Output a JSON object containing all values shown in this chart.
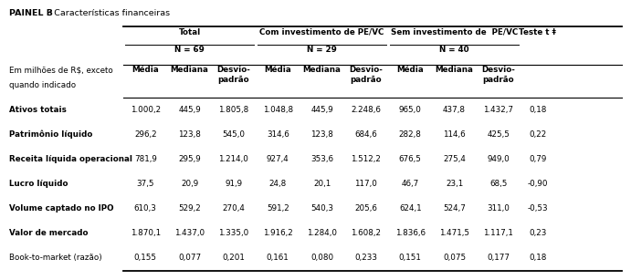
{
  "panel_label_bold": "PAINEL B",
  "panel_label_rest": ": Características financeiras",
  "groups": [
    {
      "label": "Total",
      "n": "N = 69"
    },
    {
      "label": "Com investimento de PE/VC",
      "n": "N = 29"
    },
    {
      "label": "Sem investimento de  PE/VC",
      "n": "N = 40"
    }
  ],
  "col_header": [
    "Média",
    "Mediana",
    "Desvio-\npadrão"
  ],
  "last_col_header": "Teste t ‡",
  "row_label_header_line1": "Em milhões de R$, exceto",
  "row_label_header_line2": "quando indicado",
  "rows": [
    {
      "label": "Ativos totais",
      "bold": true,
      "total": [
        "1.000,2",
        "445,9",
        "1.805,8"
      ],
      "com": [
        "1.048,8",
        "445,9",
        "2.248,6"
      ],
      "sem": [
        "965,0",
        "437,8",
        "1.432,7"
      ],
      "teste": "0,18"
    },
    {
      "label": "Patrimônio líquido",
      "bold": true,
      "total": [
        "296,2",
        "123,8",
        "545,0"
      ],
      "com": [
        "314,6",
        "123,8",
        "684,6"
      ],
      "sem": [
        "282,8",
        "114,6",
        "425,5"
      ],
      "teste": "0,22"
    },
    {
      "label": "Receita líquida operacional",
      "bold": true,
      "total": [
        "781,9",
        "295,9",
        "1.214,0"
      ],
      "com": [
        "927,4",
        "353,6",
        "1.512,2"
      ],
      "sem": [
        "676,5",
        "275,4",
        "949,0"
      ],
      "teste": "0,79"
    },
    {
      "label": "Lucro líquido",
      "bold": true,
      "total": [
        "37,5",
        "20,9",
        "91,9"
      ],
      "com": [
        "24,8",
        "20,1",
        "117,0"
      ],
      "sem": [
        "46,7",
        "23,1",
        "68,5"
      ],
      "teste": "-0,90"
    },
    {
      "label": "Volume captado no IPO",
      "bold": true,
      "total": [
        "610,3",
        "529,2",
        "270,4"
      ],
      "com": [
        "591,2",
        "540,3",
        "205,6"
      ],
      "sem": [
        "624,1",
        "524,7",
        "311,0"
      ],
      "teste": "-0,53"
    },
    {
      "label": "Valor de mercado",
      "bold": true,
      "total": [
        "1.870,1",
        "1.437,0",
        "1.335,0"
      ],
      "com": [
        "1.916,2",
        "1.284,0",
        "1.608,2"
      ],
      "sem": [
        "1.836,6",
        "1.471,5",
        "1.117,1"
      ],
      "teste": "0,23"
    },
    {
      "label": "Book-to-market (razão)",
      "bold": false,
      "total": [
        "0,155",
        "0,077",
        "0,201"
      ],
      "com": [
        "0,161",
        "0,080",
        "0,233"
      ],
      "sem": [
        "0,151",
        "0,075",
        "0,177"
      ],
      "teste": "0,18"
    }
  ]
}
